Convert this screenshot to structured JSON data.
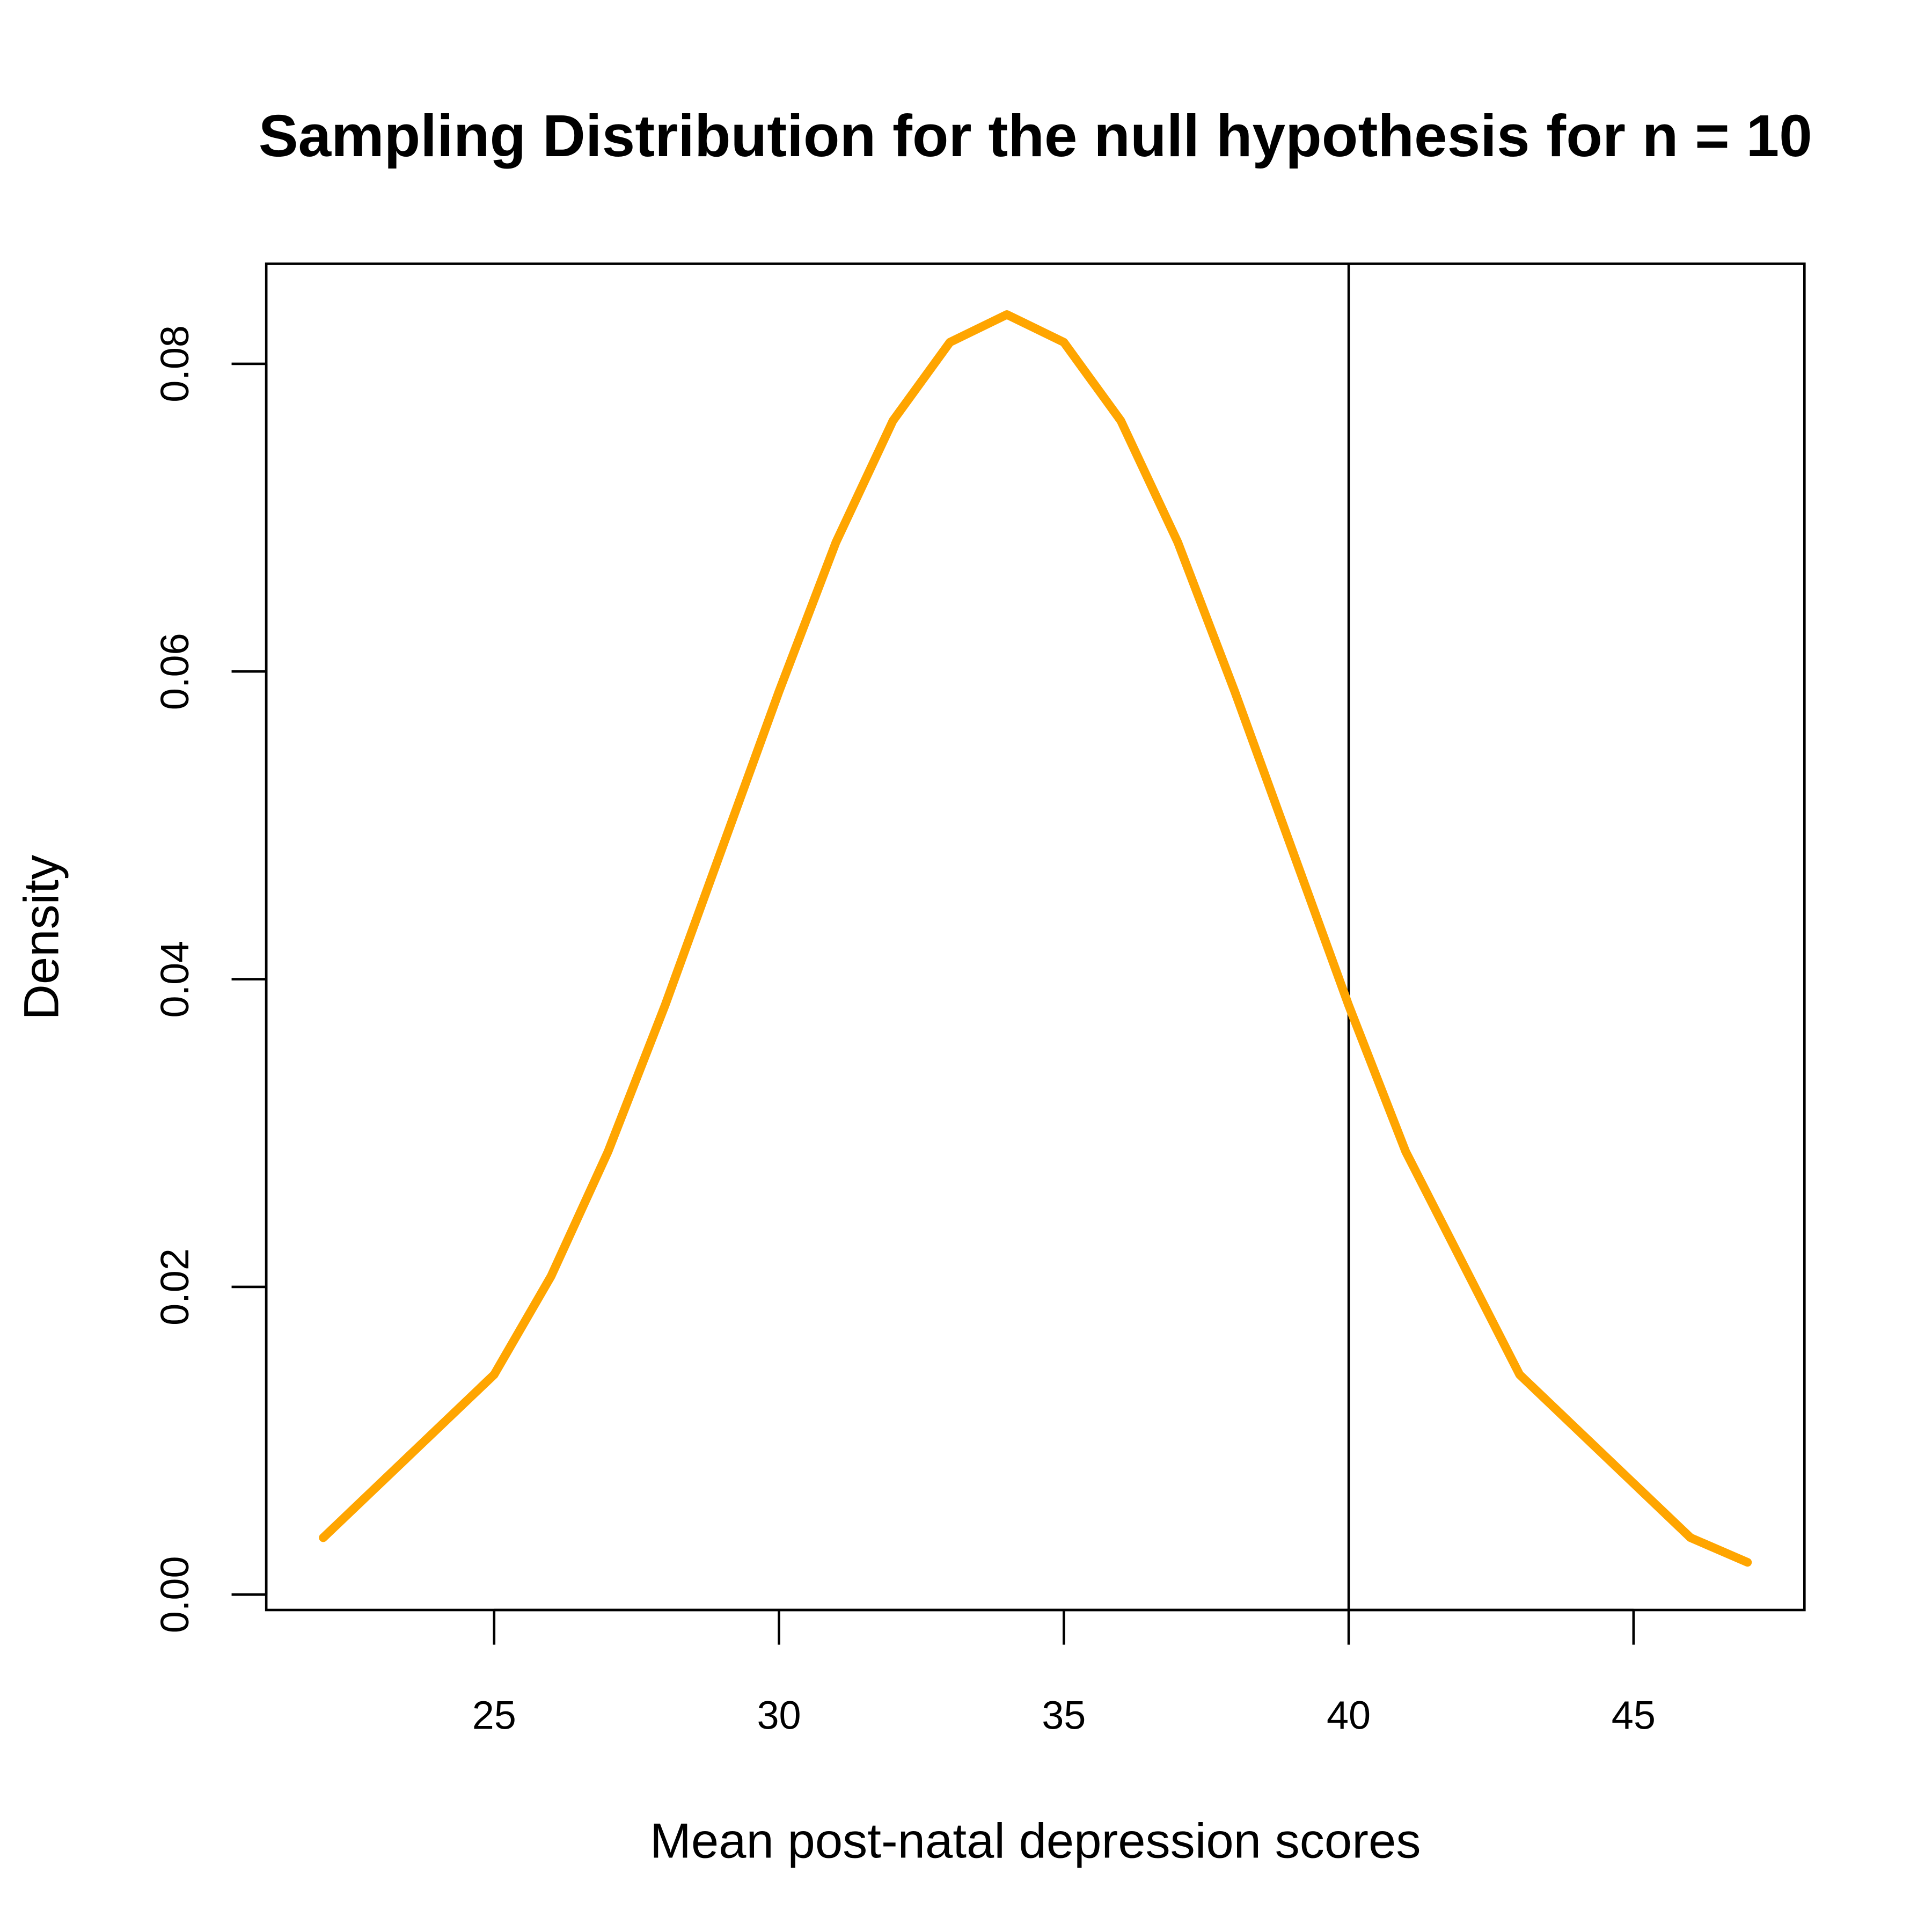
{
  "chart_data": {
    "type": "line",
    "title": "Sampling Distribution for the null hypothesis for n = 10",
    "xlabel": "Mean post-natal depression scores",
    "ylabel": "Density",
    "xlim": [
      21,
      48
    ],
    "ylim": [
      -0.001,
      0.0865
    ],
    "x_ticks": [
      25,
      30,
      35,
      40,
      45
    ],
    "x_tick_labels": [
      "25",
      "30",
      "35",
      "40",
      "45"
    ],
    "y_ticks": [
      0,
      0.02,
      0.04,
      0.06,
      0.08
    ],
    "y_tick_labels": [
      "0.00",
      "0.02",
      "0.04",
      "0.06",
      "0.08"
    ],
    "grid": false,
    "series": [
      {
        "color": "#FFA500",
        "x": [
          22,
          25,
          26,
          27,
          28,
          30,
          31,
          32,
          33,
          34,
          35,
          36,
          37,
          38,
          40,
          41,
          43,
          46,
          47
        ],
        "y": [
          0.0037,
          0.0143,
          0.0207,
          0.0288,
          0.0383,
          0.0587,
          0.0684,
          0.0763,
          0.0814,
          0.0832,
          0.0814,
          0.0763,
          0.0684,
          0.0587,
          0.0383,
          0.0288,
          0.0143,
          0.0037,
          0.0021
        ]
      }
    ],
    "vertical_line": {
      "x": 40,
      "color": "#000000"
    }
  }
}
